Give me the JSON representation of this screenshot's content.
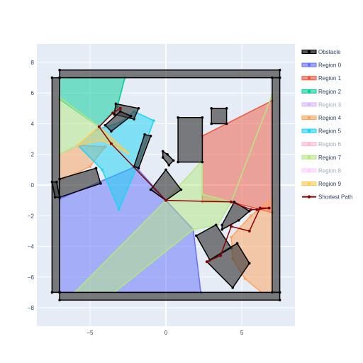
{
  "chart_data": {
    "type": "scatter",
    "title": "",
    "xlabel": "",
    "ylabel": "",
    "xlim": [
      -8.5,
      8.5
    ],
    "ylim": [
      -9.2,
      9.2
    ],
    "xticks": [
      -5,
      0,
      5
    ],
    "yticks": [
      -8,
      -6,
      -4,
      -2,
      0,
      2,
      4,
      6,
      8
    ],
    "grid": true,
    "legend_position": "right",
    "background_color": "#e5ecf6",
    "series": [
      {
        "name": "Obstacle",
        "color": "#000000",
        "fill_color": "rgba(60,60,60,0.65)",
        "legend_visible": true,
        "polygons": [
          [
            [
              -7.0,
              7.5
            ],
            [
              7.5,
              7.5
            ],
            [
              7.5,
              7.0
            ],
            [
              -7.0,
              7.0
            ]
          ],
          [
            [
              -7.5,
              7.0
            ],
            [
              -7.0,
              7.0
            ],
            [
              -7.0,
              -7.0
            ],
            [
              -7.5,
              -7.0
            ]
          ],
          [
            [
              7.0,
              7.0
            ],
            [
              7.5,
              7.0
            ],
            [
              7.5,
              -7.0
            ],
            [
              7.0,
              -7.0
            ]
          ],
          [
            [
              -7.0,
              -7.0
            ],
            [
              7.5,
              -7.0
            ],
            [
              7.5,
              -7.5
            ],
            [
              -7.0,
              -7.5
            ]
          ],
          [
            [
              -7.5,
              0.2
            ],
            [
              -7.2,
              0.2
            ],
            [
              -7.0,
              -0.8
            ],
            [
              -7.3,
              -0.8
            ]
          ],
          [
            [
              -7.0,
              0.4
            ],
            [
              -4.6,
              1.1
            ],
            [
              -4.3,
              0.1
            ],
            [
              -7.0,
              -0.8
            ]
          ],
          [
            [
              -3.3,
              5.3
            ],
            [
              -1.8,
              5.0
            ],
            [
              -2.1,
              4.3
            ],
            [
              -3.4,
              4.6
            ]
          ],
          [
            [
              -4.0,
              3.9
            ],
            [
              -3.0,
              4.8
            ],
            [
              -2.3,
              4.5
            ],
            [
              -3.6,
              3.5
            ]
          ],
          [
            [
              -1.4,
              3.3
            ],
            [
              -1.0,
              3.2
            ],
            [
              -1.8,
              1.1
            ],
            [
              -2.1,
              1.2
            ]
          ],
          [
            [
              0.8,
              4.4
            ],
            [
              2.4,
              4.4
            ],
            [
              2.4,
              1.5
            ],
            [
              0.8,
              1.5
            ]
          ],
          [
            [
              3.0,
              5.0
            ],
            [
              4.0,
              5.0
            ],
            [
              4.0,
              4.0
            ],
            [
              3.0,
              4.0
            ]
          ],
          [
            [
              -0.2,
              2.2
            ],
            [
              0.1,
              2.0
            ],
            [
              0.5,
              1.6
            ],
            [
              0.2,
              1.3
            ],
            [
              -0.2,
              1.8
            ]
          ],
          [
            [
              -1.0,
              -0.3
            ],
            [
              0.0,
              1.0
            ],
            [
              1.0,
              -0.3
            ],
            [
              0.0,
              -1.0
            ]
          ],
          [
            [
              3.7,
              -2.9
            ],
            [
              4.8,
              -2.3
            ],
            [
              5.5,
              -1.7
            ],
            [
              4.5,
              -1.1
            ],
            [
              3.7,
              -2.6
            ]
          ],
          [
            [
              2.0,
              -3.3
            ],
            [
              3.3,
              -2.6
            ],
            [
              4.3,
              -4.1
            ],
            [
              2.9,
              -4.9
            ]
          ],
          [
            [
              2.7,
              -5.0
            ],
            [
              4.7,
              -3.8
            ],
            [
              5.5,
              -5.1
            ],
            [
              4.4,
              -6.7
            ]
          ]
        ]
      },
      {
        "name": "Region 0",
        "color": "#636efa",
        "fill_color": "rgba(99,110,250,0.5)",
        "legend_visible": true,
        "polygons": [
          [
            [
              -7.0,
              -0.9
            ],
            [
              -2.0,
              1.2
            ],
            [
              0.0,
              -1.0
            ],
            [
              1.8,
              -2.9
            ],
            [
              2.3,
              -7.0
            ],
            [
              -7.0,
              -7.0
            ]
          ]
        ]
      },
      {
        "name": "Region 1",
        "color": "#ef553b",
        "fill_color": "rgba(239,85,59,0.5)",
        "legend_visible": true,
        "polygons": [
          [
            [
              2.4,
              3.2
            ],
            [
              7.0,
              5.5
            ],
            [
              7.0,
              -1.8
            ],
            [
              4.3,
              -1.1
            ],
            [
              2.4,
              -1.1
            ]
          ]
        ]
      },
      {
        "name": "Region 2",
        "color": "#00cc96",
        "fill_color": "rgba(0,204,150,0.5)",
        "legend_visible": true,
        "polygons": [
          [
            [
              -7.0,
              7.0
            ],
            [
              -2.7,
              7.0
            ],
            [
              -3.2,
              5.1
            ],
            [
              -4.4,
              3.8
            ],
            [
              -7.0,
              5.6
            ]
          ]
        ]
      },
      {
        "name": "Region 3",
        "color": "#ab63fa",
        "fill_color": "rgba(171,99,250,0.5)",
        "legend_visible": false,
        "polygons": []
      },
      {
        "name": "Region 4",
        "color": "#ffa15a",
        "fill_color": "rgba(255,161,90,0.5)",
        "legend_visible": true,
        "polygons": [
          [
            [
              7.0,
              -0.9
            ],
            [
              7.0,
              -7.0
            ],
            [
              6.3,
              -7.0
            ],
            [
              5.2,
              -6.1
            ],
            [
              4.4,
              -4.8
            ],
            [
              4.3,
              -3.4
            ],
            [
              5.6,
              -2.0
            ]
          ],
          [
            [
              -7.0,
              0.3
            ],
            [
              -5.0,
              1.2
            ],
            [
              -4.0,
              2.5
            ],
            [
              -5.8,
              2.6
            ],
            [
              -7.0,
              2.0
            ]
          ]
        ]
      },
      {
        "name": "Region 5",
        "color": "#19d3f3",
        "fill_color": "rgba(25,211,243,0.5)",
        "legend_visible": true,
        "polygons": [
          [
            [
              -3.0,
              4.1
            ],
            [
              -2.1,
              4.8
            ],
            [
              -0.8,
              4.2
            ],
            [
              -1.9,
              1.2
            ],
            [
              -3.1,
              -1.6
            ],
            [
              -4.2,
              1.0
            ],
            [
              -5.8,
              2.6
            ],
            [
              -4.6,
              3.6
            ]
          ]
        ]
      },
      {
        "name": "Region 6",
        "color": "#ff6692",
        "fill_color": "rgba(255,102,146,0.5)",
        "legend_visible": false,
        "polygons": []
      },
      {
        "name": "Region 7",
        "color": "#b6e880",
        "fill_color": "rgba(182,232,128,0.5)",
        "legend_visible": true,
        "polygons": [
          [
            [
              -7.0,
              5.7
            ],
            [
              -4.4,
              3.8
            ],
            [
              -5.8,
              2.6
            ],
            [
              -7.0,
              2.0
            ]
          ],
          [
            [
              7.0,
              5.9
            ],
            [
              4.3,
              -1.1
            ],
            [
              3.4,
              -2.6
            ],
            [
              1.8,
              -2.9
            ],
            [
              -3.4,
              -7.0
            ],
            [
              -6.0,
              -7.0
            ],
            [
              0.0,
              -1.0
            ],
            [
              2.4,
              1.6
            ],
            [
              2.4,
              -0.6
            ],
            [
              4.3,
              -1.1
            ]
          ]
        ]
      },
      {
        "name": "Region 8",
        "color": "#ff97ff",
        "fill_color": "rgba(255,151,255,0.5)",
        "legend_visible": false,
        "polygons": []
      },
      {
        "name": "Region 9",
        "color": "#fecb52",
        "fill_color": "rgba(254,203,82,0.5)",
        "legend_visible": true,
        "polygons": [
          [
            [
              -5.8,
              2.6
            ],
            [
              -4.2,
              2.9
            ],
            [
              -2.5,
              2.1
            ],
            [
              -4.4,
              3.8
            ]
          ]
        ]
      }
    ],
    "shortest_path": {
      "name": "Shortest Path",
      "color": "#8b0000",
      "points": [
        [
          -3.0,
          5.0
        ],
        [
          -3.5,
          4.7
        ],
        [
          -4.4,
          3.8
        ],
        [
          -3.6,
          2.7
        ],
        [
          0.0,
          -1.0
        ],
        [
          4.3,
          -1.1
        ],
        [
          5.6,
          -1.6
        ],
        [
          6.0,
          -1.6
        ],
        [
          6.8,
          -1.5
        ],
        [
          6.2,
          -1.5
        ],
        [
          5.5,
          -3.0
        ],
        [
          4.3,
          -2.7
        ],
        [
          3.6,
          -4.6
        ],
        [
          2.7,
          -5.0
        ]
      ]
    },
    "legend_entries": [
      {
        "name": "Obstacle",
        "color": "#000000",
        "dim": false
      },
      {
        "name": "Region 0",
        "color": "#636efa",
        "dim": false
      },
      {
        "name": "Region 1",
        "color": "#ef553b",
        "dim": false
      },
      {
        "name": "Region 2",
        "color": "#00cc96",
        "dim": false
      },
      {
        "name": "Region 3",
        "color": "#ab63fa",
        "dim": true
      },
      {
        "name": "Region 4",
        "color": "#ffa15a",
        "dim": false
      },
      {
        "name": "Region 5",
        "color": "#19d3f3",
        "dim": false
      },
      {
        "name": "Region 6",
        "color": "#ff6692",
        "dim": true
      },
      {
        "name": "Region 7",
        "color": "#b6e880",
        "dim": false
      },
      {
        "name": "Region 8",
        "color": "#ff97ff",
        "dim": true
      },
      {
        "name": "Region 9",
        "color": "#fecb52",
        "dim": false
      },
      {
        "name": "Shortest Path",
        "color": "#8b0000",
        "dim": false
      }
    ]
  }
}
